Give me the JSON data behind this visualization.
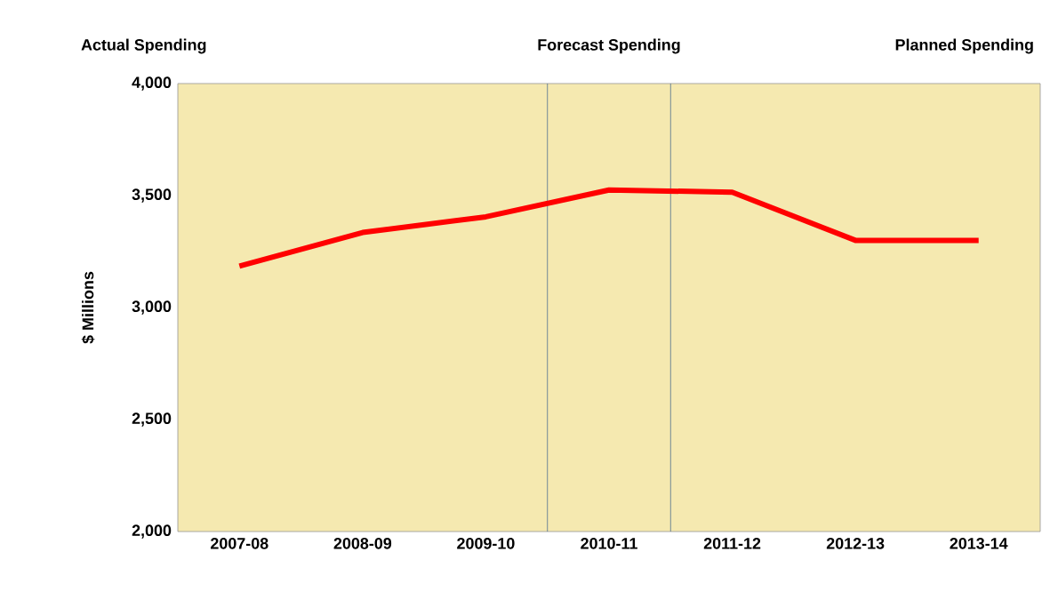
{
  "chart_data": {
    "type": "line",
    "ylabel": "$ Millions",
    "categories": [
      "2007-08",
      "2008-09",
      "2009-10",
      "2010-11",
      "2011-12",
      "2012-13",
      "2013-14"
    ],
    "series": [
      {
        "color": "#ff0000",
        "values": [
          3185,
          3335,
          3405,
          3525,
          3515,
          3300,
          3300
        ]
      }
    ],
    "ylim": [
      2000,
      4000
    ],
    "yticks": [
      {
        "value": 2000,
        "label": "2,000"
      },
      {
        "value": 2500,
        "label": "2,500"
      },
      {
        "value": 3000,
        "label": "3,000"
      },
      {
        "value": 3500,
        "label": "3,500"
      },
      {
        "value": 4000,
        "label": "4,000"
      }
    ],
    "annotations": [
      "Actual Spending",
      "Forecast Spending",
      "Planned Spending"
    ],
    "line_style": "solid",
    "marker": "none"
  }
}
